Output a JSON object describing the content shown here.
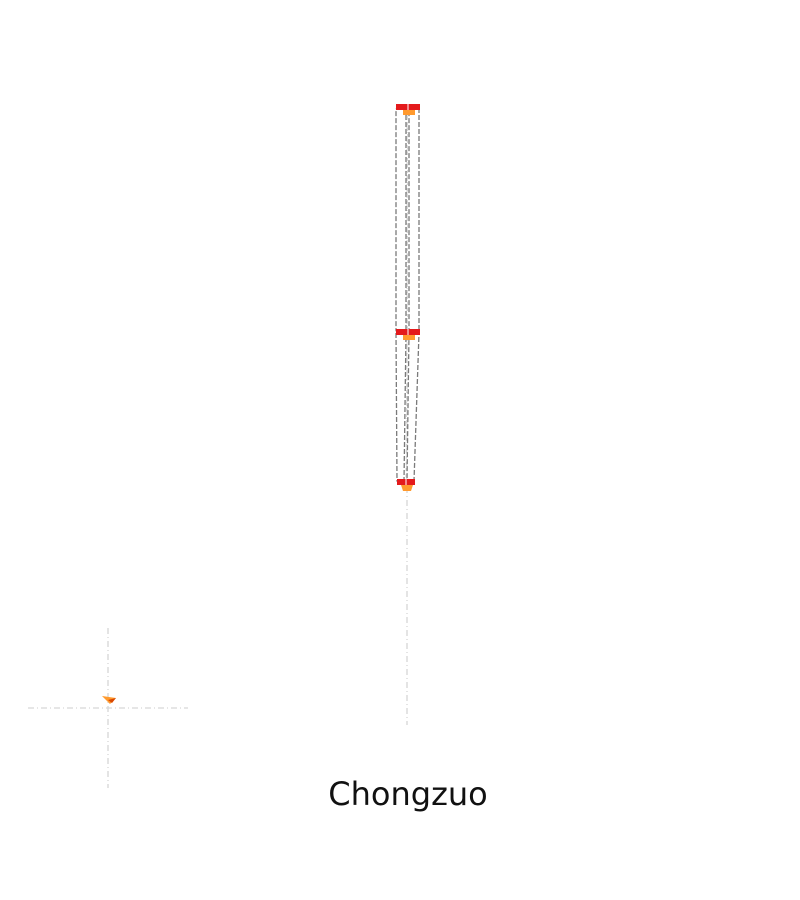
{
  "map": {
    "title": "Chongzuo"
  },
  "colors": {
    "background": "#ffffff",
    "route_outline": "#808080",
    "route_fill": "#ffffff",
    "node_marker": "#e41a1c",
    "node_accent": "#ff8c1a",
    "guide_line": "#d3d3d3"
  },
  "icons": {
    "node": "red-rectangle-marker",
    "accent": "orange-triangle-marker",
    "locator": "crosshair-marker"
  }
}
